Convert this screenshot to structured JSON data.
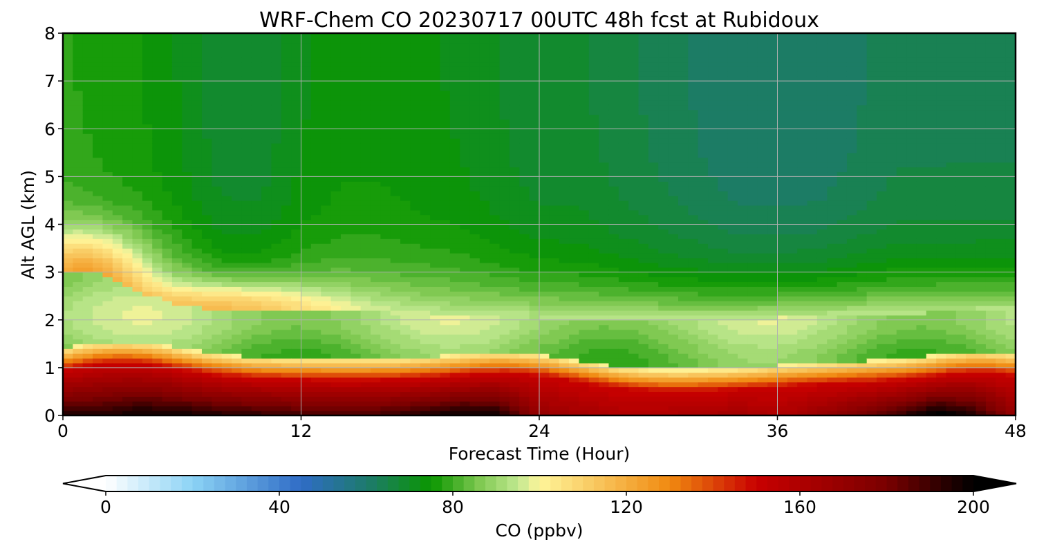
{
  "chart_data": {
    "type": "heatmap",
    "title": "WRF-Chem CO  20230717 00UTC 48h fcst at Rubidoux",
    "xlabel": "Forecast Time (Hour)",
    "ylabel": "Alt AGL (km)",
    "xlim": [
      0,
      48
    ],
    "ylim": [
      0,
      8
    ],
    "xticks": [
      0,
      12,
      24,
      36,
      48
    ],
    "yticks": [
      0,
      1,
      2,
      3,
      4,
      5,
      6,
      7,
      8
    ],
    "grid": true,
    "colorbar": {
      "label": "CO  (ppbv)",
      "min": 0,
      "max": 200,
      "step": 2.5,
      "ticks": [
        0,
        40,
        80,
        120,
        160,
        200
      ],
      "extend": "both",
      "orientation": "horizontal",
      "colors": {
        "under": "#ffffff",
        "white": "#ffffff",
        "light_blue": "#8cd3f5",
        "blue": "#2f6cc6",
        "teal": "#1e7a6e",
        "green": "#0a9600",
        "light_green": "#7ec850",
        "pale_green": "#c0e890",
        "pale_yellow": "#fff59a",
        "orange": "#f08a10",
        "red": "#c80000",
        "dark_red": "#7a0000",
        "black": "#000000",
        "over": "#000000"
      }
    },
    "x_hours": [
      0,
      2,
      4,
      6,
      8,
      10,
      12,
      14,
      16,
      18,
      20,
      22,
      24,
      26,
      28,
      30,
      32,
      34,
      36,
      38,
      40,
      42,
      44,
      46,
      48
    ],
    "altitudes_km": [
      0,
      0.25,
      0.5,
      0.75,
      1.0,
      1.25,
      1.5,
      1.75,
      2.0,
      2.25,
      2.5,
      2.75,
      3.0,
      3.5,
      4.0,
      4.5,
      5.0,
      5.5,
      6.0,
      6.5,
      7.0,
      7.5,
      8.0
    ],
    "profile_ppbv": {
      "surface_layer": [
        195,
        195,
        200,
        198,
        195,
        193,
        190,
        188,
        190,
        195,
        200,
        198,
        170,
        165,
        160,
        160,
        162,
        165,
        160,
        168,
        180,
        190,
        205,
        195,
        170
      ],
      "upper_air": [
        78,
        76,
        75,
        72,
        68,
        68,
        72,
        74,
        74,
        73,
        72,
        70,
        68,
        68,
        66,
        64,
        62,
        60,
        60,
        60,
        62,
        64,
        64,
        64,
        64
      ]
    }
  }
}
